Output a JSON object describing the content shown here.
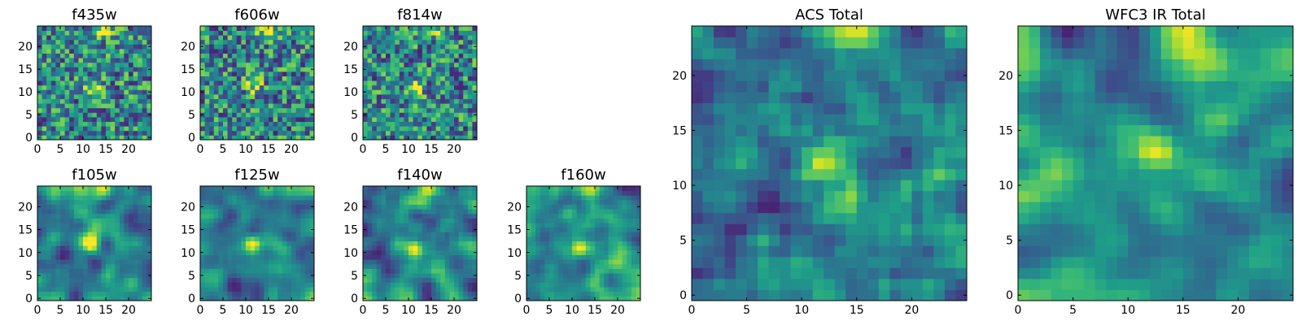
{
  "chart_data": [
    {
      "type": "heatmap",
      "id": "f435w",
      "title": "f435w",
      "x_ticks": [
        "0",
        "5",
        "10",
        "15",
        "20"
      ],
      "y_ticks": [
        "0",
        "5",
        "10",
        "15",
        "20"
      ],
      "xlim": [
        0,
        25
      ],
      "ylim": [
        0,
        25
      ],
      "grid_size": 25,
      "colormap": "viridis",
      "source": {
        "x": 12,
        "y": 11
      }
    },
    {
      "type": "heatmap",
      "id": "f606w",
      "title": "f606w",
      "x_ticks": [
        "0",
        "5",
        "10",
        "15",
        "20"
      ],
      "y_ticks": [
        "0",
        "5",
        "10",
        "15",
        "20"
      ],
      "xlim": [
        0,
        25
      ],
      "ylim": [
        0,
        25
      ],
      "grid_size": 25,
      "colormap": "viridis",
      "source": {
        "x": 11,
        "y": 12
      }
    },
    {
      "type": "heatmap",
      "id": "f814w",
      "title": "f814w",
      "x_ticks": [
        "0",
        "5",
        "10",
        "15",
        "20"
      ],
      "y_ticks": [
        "0",
        "5",
        "10",
        "15",
        "20"
      ],
      "xlim": [
        0,
        25
      ],
      "ylim": [
        0,
        25
      ],
      "grid_size": 25,
      "colormap": "viridis",
      "source": {
        "x": 11,
        "y": 11
      }
    },
    {
      "type": "heatmap",
      "id": "f105w",
      "title": "f105w",
      "x_ticks": [
        "0",
        "5",
        "10",
        "15",
        "20"
      ],
      "y_ticks": [
        "0",
        "5",
        "10",
        "15",
        "20"
      ],
      "xlim": [
        0,
        25
      ],
      "ylim": [
        0,
        25
      ],
      "grid_size": 25,
      "colormap": "viridis",
      "source": {
        "x": 11,
        "y": 12
      }
    },
    {
      "type": "heatmap",
      "id": "f125w",
      "title": "f125w",
      "x_ticks": [
        "0",
        "5",
        "10",
        "15",
        "20"
      ],
      "y_ticks": [
        "0",
        "5",
        "10",
        "15",
        "20"
      ],
      "xlim": [
        0,
        25
      ],
      "ylim": [
        0,
        25
      ],
      "grid_size": 25,
      "colormap": "viridis",
      "source": {
        "x": 11,
        "y": 12
      }
    },
    {
      "type": "heatmap",
      "id": "f140w",
      "title": "f140w",
      "x_ticks": [
        "0",
        "5",
        "10",
        "15",
        "20"
      ],
      "y_ticks": [
        "0",
        "5",
        "10",
        "15",
        "20"
      ],
      "xlim": [
        0,
        25
      ],
      "ylim": [
        0,
        25
      ],
      "grid_size": 25,
      "colormap": "viridis",
      "source": {
        "x": 11,
        "y": 11
      }
    },
    {
      "type": "heatmap",
      "id": "f160w",
      "title": "f160w",
      "x_ticks": [
        "0",
        "5",
        "10",
        "15",
        "20"
      ],
      "y_ticks": [
        "0",
        "5",
        "10",
        "15",
        "20"
      ],
      "xlim": [
        0,
        25
      ],
      "ylim": [
        0,
        25
      ],
      "grid_size": 25,
      "colormap": "viridis",
      "source": {
        "x": 11,
        "y": 11
      }
    },
    {
      "type": "heatmap",
      "id": "acs-total",
      "title": "ACS Total",
      "x_ticks": [
        "0",
        "5",
        "10",
        "15",
        "20"
      ],
      "y_ticks": [
        "0",
        "5",
        "10",
        "15",
        "20"
      ],
      "xlim": [
        0,
        25
      ],
      "ylim": [
        0,
        25
      ],
      "grid_size": 25,
      "colormap": "viridis",
      "source": {
        "x": 11,
        "y": 12
      }
    },
    {
      "type": "heatmap",
      "id": "wfc3-ir-total",
      "title": "WFC3 IR Total",
      "x_ticks": [
        "0",
        "5",
        "10",
        "15",
        "20"
      ],
      "y_ticks": [
        "0",
        "5",
        "10",
        "15",
        "20"
      ],
      "xlim": [
        0,
        25
      ],
      "ylim": [
        0,
        25
      ],
      "grid_size": 25,
      "colormap": "viridis",
      "source": {
        "x": 12,
        "y": 13
      }
    }
  ]
}
